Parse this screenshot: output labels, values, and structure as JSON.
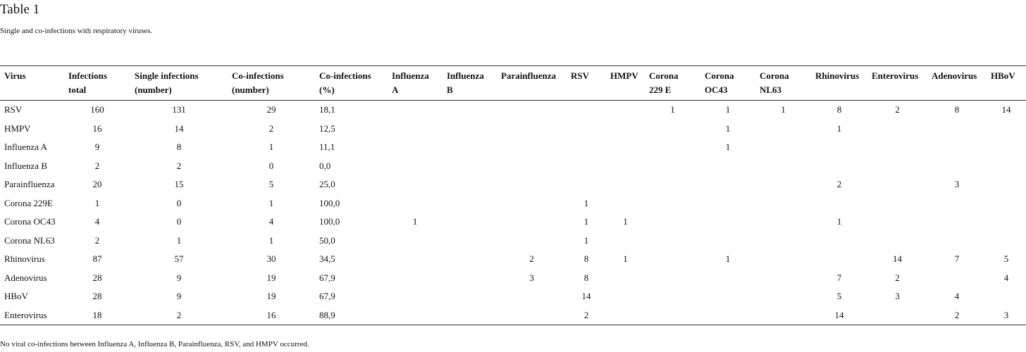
{
  "title": "Table 1",
  "caption": "Single and co-infections with respiratory viruses.",
  "table": {
    "headers": [
      [
        "Virus"
      ],
      [
        "Infections",
        "total"
      ],
      [
        "Single infections",
        "(number)"
      ],
      [
        "Co-infections",
        "(number)"
      ],
      [
        "Co-infections",
        "(%)"
      ],
      [
        "Influenza",
        "A"
      ],
      [
        "Influenza",
        "B"
      ],
      [
        "Parainfluenza"
      ],
      [
        "RSV"
      ],
      [
        "HMPV"
      ],
      [
        "Corona",
        "229 E"
      ],
      [
        "Corona",
        "OC43"
      ],
      [
        "Corona",
        "NL63"
      ],
      [
        "Rhinovirus"
      ],
      [
        "Enterovirus"
      ],
      [
        "Adenovirus"
      ],
      [
        "HBoV"
      ]
    ],
    "rows": [
      [
        "RSV",
        "160",
        "131",
        "29",
        "18,1",
        null,
        null,
        null,
        null,
        null,
        "1",
        "1",
        "1",
        "8",
        "2",
        "8",
        "14"
      ],
      [
        "HMPV",
        "16",
        "14",
        "2",
        "12,5",
        null,
        null,
        null,
        null,
        null,
        null,
        "1",
        null,
        "1",
        null,
        null,
        null
      ],
      [
        "Influenza A",
        "9",
        "8",
        "1",
        "11,1",
        null,
        null,
        null,
        null,
        null,
        null,
        "1",
        null,
        null,
        null,
        null,
        null
      ],
      [
        "Influenza B",
        "2",
        "2",
        "0",
        "0,0",
        null,
        null,
        null,
        null,
        null,
        null,
        null,
        null,
        null,
        null,
        null,
        null
      ],
      [
        "Parainfluenza",
        "20",
        "15",
        "5",
        "25,0",
        null,
        null,
        null,
        null,
        null,
        null,
        null,
        null,
        "2",
        null,
        "3",
        null
      ],
      [
        "Corona 229E",
        "1",
        "0",
        "1",
        "100,0",
        null,
        null,
        null,
        "1",
        null,
        null,
        null,
        null,
        null,
        null,
        null,
        null
      ],
      [
        "Corona OC43",
        "4",
        "0",
        "4",
        "100,0",
        "1",
        null,
        null,
        "1",
        "1",
        null,
        null,
        null,
        "1",
        null,
        null,
        null
      ],
      [
        "Corona NL63",
        "2",
        "1",
        "1",
        "50,0",
        null,
        null,
        null,
        "1",
        null,
        null,
        null,
        null,
        null,
        null,
        null,
        null
      ],
      [
        "Rhinovirus",
        "87",
        "57",
        "30",
        "34,5",
        null,
        null,
        "2",
        "8",
        "1",
        null,
        "1",
        null,
        null,
        "14",
        "7",
        "5"
      ],
      [
        "Adenovirus",
        "28",
        "9",
        "19",
        "67,9",
        null,
        null,
        "3",
        "8",
        null,
        null,
        null,
        null,
        "7",
        "2",
        null,
        "4"
      ],
      [
        "HBoV",
        "28",
        "9",
        "19",
        "67,9",
        null,
        null,
        null,
        "14",
        null,
        null,
        null,
        null,
        "5",
        "3",
        "4",
        null
      ],
      [
        "Enterovirus",
        "18",
        "2",
        "16",
        "88,9",
        null,
        null,
        null,
        "2",
        null,
        null,
        null,
        null,
        "14",
        null,
        "2",
        "3"
      ]
    ]
  },
  "footnote": "No viral co-infections between Influenza A, Influenza B, Parainfluenza, RSV, and HMPV occurred."
}
